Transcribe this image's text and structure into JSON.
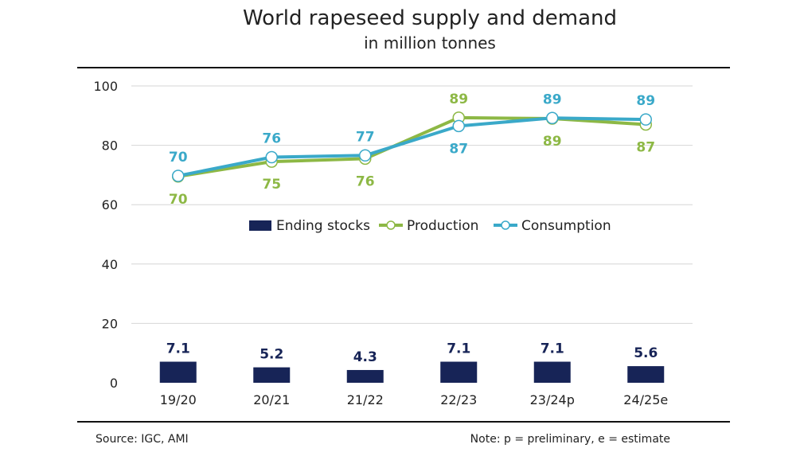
{
  "title": "World rapeseed supply and demand",
  "subtitle": "in million tonnes",
  "footer": {
    "source": "Source: IGC, AMI",
    "note": "Note: p = preliminary, e = estimate"
  },
  "colors": {
    "ending_stocks": "#172457",
    "production": "#8db845",
    "consumption": "#3aa9c9",
    "grid": "#d6d6d6"
  },
  "chart_data": {
    "type": "bar+line",
    "title": "World rapeseed supply and demand",
    "subtitle": "in million tonnes",
    "categories": [
      "19/20",
      "20/21",
      "21/22",
      "22/23",
      "23/24p",
      "24/25e"
    ],
    "ylim": [
      0,
      100
    ],
    "yticks": [
      0,
      20,
      40,
      60,
      80,
      100
    ],
    "grid": true,
    "legend_position": "middle",
    "series": [
      {
        "name": "Ending stocks",
        "type": "bar",
        "values": [
          7.1,
          5.2,
          4.3,
          7.1,
          7.1,
          5.6
        ],
        "labels": [
          "7.1",
          "5.2",
          "4.3",
          "7.1",
          "7.1",
          "5.6"
        ]
      },
      {
        "name": "Production",
        "type": "line",
        "values": [
          69.5,
          74.5,
          75.5,
          89.3,
          89,
          87
        ],
        "labels": [
          "70",
          "75",
          "76",
          "89",
          "89",
          "87"
        ]
      },
      {
        "name": "Consumption",
        "type": "line",
        "values": [
          69.7,
          76,
          76.6,
          86.5,
          89.2,
          88.7
        ],
        "labels": [
          "70",
          "76",
          "77",
          "87",
          "89",
          "89"
        ]
      }
    ]
  }
}
